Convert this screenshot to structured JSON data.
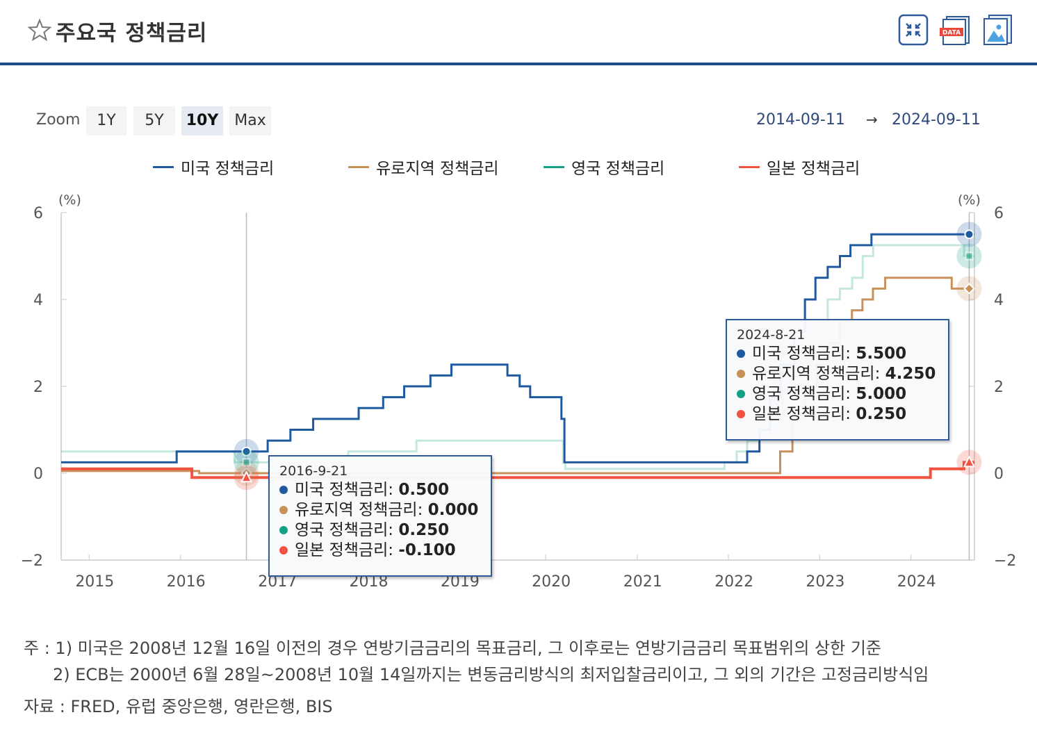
{
  "header": {
    "title": "주요국 정책금리",
    "buttons": [
      {
        "name": "collapse-button",
        "icon": "collapse-arrows-icon"
      },
      {
        "name": "data-button",
        "icon": "data-file-icon",
        "label": "DATA"
      },
      {
        "name": "image-button",
        "icon": "image-file-icon"
      }
    ]
  },
  "zoom": {
    "label": "Zoom",
    "options": [
      "1Y",
      "5Y",
      "10Y",
      "Max"
    ],
    "active": "10Y"
  },
  "date_range": {
    "from": "2014-09-11",
    "arrow": "→",
    "to": "2024-09-11"
  },
  "legend": [
    {
      "name": "미국 정책금리",
      "color": "#1f5aa0"
    },
    {
      "name": "유로지역 정책금리",
      "color": "#c8915a"
    },
    {
      "name": "영국 정책금리",
      "color": "#13a085"
    },
    {
      "name": "일본 정책금리",
      "color": "#f0533f"
    }
  ],
  "chart_data": {
    "type": "line",
    "step": true,
    "unit_left": "(%)",
    "unit_right": "(%)",
    "x_range": [
      "2014-09-11",
      "2024-09-11"
    ],
    "ylim": [
      -2,
      6
    ],
    "y_ticks": [
      6,
      4,
      2,
      0,
      -2
    ],
    "x_ticks": [
      "2015",
      "2016",
      "2017",
      "2018",
      "2019",
      "2020",
      "2021",
      "2022",
      "2023",
      "2024"
    ],
    "series": [
      {
        "name": "미국 정책금리",
        "color": "#1f5aa0",
        "points": [
          [
            "2014-09-11",
            0.25
          ],
          [
            "2015-12-17",
            0.5
          ],
          [
            "2016-12-15",
            0.75
          ],
          [
            "2017-03-16",
            1.0
          ],
          [
            "2017-06-15",
            1.25
          ],
          [
            "2017-12-14",
            1.5
          ],
          [
            "2018-03-22",
            1.75
          ],
          [
            "2018-06-14",
            2.0
          ],
          [
            "2018-09-27",
            2.25
          ],
          [
            "2018-12-20",
            2.5
          ],
          [
            "2019-08-01",
            2.25
          ],
          [
            "2019-09-19",
            2.0
          ],
          [
            "2019-10-31",
            1.75
          ],
          [
            "2020-03-04",
            1.25
          ],
          [
            "2020-03-16",
            0.25
          ],
          [
            "2022-03-17",
            0.5
          ],
          [
            "2022-05-05",
            1.0
          ],
          [
            "2022-06-16",
            1.75
          ],
          [
            "2022-07-28",
            2.5
          ],
          [
            "2022-09-22",
            3.25
          ],
          [
            "2022-11-03",
            4.0
          ],
          [
            "2022-12-15",
            4.5
          ],
          [
            "2023-02-02",
            4.75
          ],
          [
            "2023-03-23",
            5.0
          ],
          [
            "2023-05-04",
            5.25
          ],
          [
            "2023-07-27",
            5.5
          ],
          [
            "2024-09-11",
            5.5
          ]
        ]
      },
      {
        "name": "유로지역 정책금리",
        "color": "#c8915a",
        "points": [
          [
            "2014-09-11",
            0.05
          ],
          [
            "2016-03-16",
            0.0
          ],
          [
            "2022-07-27",
            0.5
          ],
          [
            "2022-09-14",
            1.25
          ],
          [
            "2022-11-02",
            2.0
          ],
          [
            "2022-12-21",
            2.5
          ],
          [
            "2023-02-08",
            3.0
          ],
          [
            "2023-03-22",
            3.5
          ],
          [
            "2023-05-10",
            3.75
          ],
          [
            "2023-06-21",
            4.0
          ],
          [
            "2023-08-02",
            4.25
          ],
          [
            "2023-09-20",
            4.5
          ],
          [
            "2024-06-12",
            4.25
          ],
          [
            "2024-09-11",
            4.25
          ]
        ]
      },
      {
        "name": "영국 정책금리",
        "color": "#13a085",
        "faded": true,
        "points": [
          [
            "2014-09-11",
            0.5
          ],
          [
            "2016-08-04",
            0.25
          ],
          [
            "2017-11-02",
            0.5
          ],
          [
            "2018-08-02",
            0.75
          ],
          [
            "2020-03-11",
            0.25
          ],
          [
            "2020-03-19",
            0.1
          ],
          [
            "2021-12-16",
            0.25
          ],
          [
            "2022-02-03",
            0.5
          ],
          [
            "2022-03-17",
            0.75
          ],
          [
            "2022-05-05",
            1.0
          ],
          [
            "2022-06-16",
            1.25
          ],
          [
            "2022-08-04",
            1.75
          ],
          [
            "2022-09-22",
            2.25
          ],
          [
            "2022-11-03",
            3.0
          ],
          [
            "2022-12-15",
            3.5
          ],
          [
            "2023-02-02",
            4.0
          ],
          [
            "2023-03-23",
            4.25
          ],
          [
            "2023-05-11",
            4.5
          ],
          [
            "2023-06-22",
            5.0
          ],
          [
            "2023-08-03",
            5.25
          ],
          [
            "2024-08-01",
            5.0
          ],
          [
            "2024-09-11",
            5.0
          ]
        ]
      },
      {
        "name": "일본 정책금리",
        "color": "#f0533f",
        "points": [
          [
            "2014-09-11",
            0.1
          ],
          [
            "2016-02-16",
            -0.1
          ],
          [
            "2024-03-19",
            0.1
          ],
          [
            "2024-07-31",
            0.25
          ],
          [
            "2024-09-11",
            0.25
          ]
        ]
      }
    ],
    "tooltips": [
      {
        "date": "2016-9-21",
        "rows": [
          {
            "name": "미국 정책금리",
            "value": "0.500",
            "color": "#1f5aa0"
          },
          {
            "name": "유로지역 정책금리",
            "value": "0.000",
            "color": "#c8915a"
          },
          {
            "name": "영국 정책금리",
            "value": "0.250",
            "color": "#13a085"
          },
          {
            "name": "일본 정책금리",
            "value": "-0.100",
            "color": "#f0533f"
          }
        ]
      },
      {
        "date": "2024-8-21",
        "rows": [
          {
            "name": "미국 정책금리",
            "value": "5.500",
            "color": "#1f5aa0"
          },
          {
            "name": "유로지역 정책금리",
            "value": "4.250",
            "color": "#c8915a"
          },
          {
            "name": "영국 정책금리",
            "value": "5.000",
            "color": "#13a085"
          },
          {
            "name": "일본 정책금리",
            "value": "0.250",
            "color": "#f0533f"
          }
        ]
      }
    ]
  },
  "notes": {
    "line1": "주 : 1) 미국은 2008년 12월 16일 이전의 경우 연방기금금리의 목표금리, 그 이후로는 연방기금금리 목표범위의 상한 기준",
    "line2": "2) ECB는 2000년 6월 28일~2008년 10월 14일까지는 변동금리방식의 최저입찰금리이고, 그 외의 기간은 고정금리방식임",
    "source": "자료 : FRED, 유럽 중앙은행, 영란은행, BIS"
  }
}
